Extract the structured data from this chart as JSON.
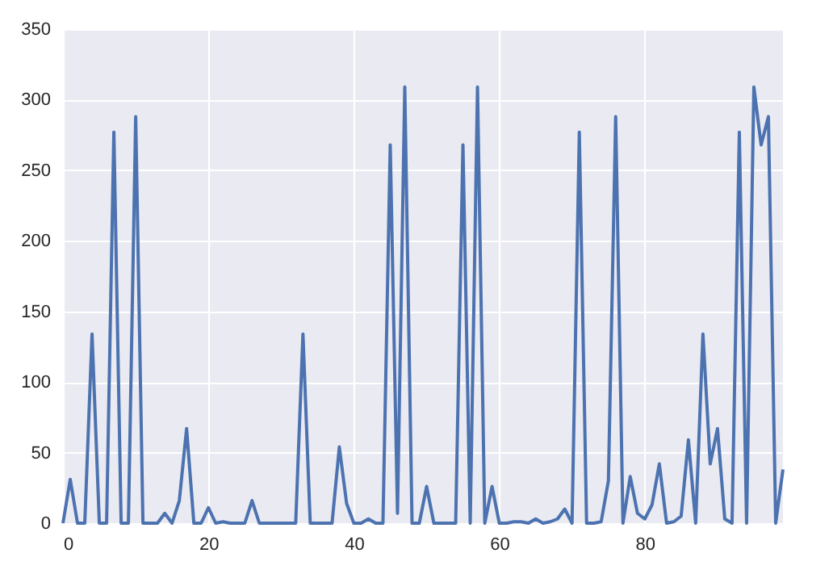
{
  "chart_data": {
    "type": "line",
    "x": [
      0,
      1,
      2,
      3,
      4,
      5,
      6,
      7,
      8,
      9,
      10,
      11,
      12,
      13,
      14,
      15,
      16,
      17,
      18,
      19,
      20,
      21,
      22,
      23,
      24,
      25,
      26,
      27,
      28,
      29,
      30,
      31,
      32,
      33,
      34,
      35,
      36,
      37,
      38,
      39,
      40,
      41,
      42,
      43,
      44,
      45,
      46,
      47,
      48,
      49,
      50,
      51,
      52,
      53,
      54,
      55,
      56,
      57,
      58,
      59,
      60,
      61,
      62,
      63,
      64,
      65,
      66,
      67,
      68,
      69,
      70,
      71,
      72,
      73,
      74,
      75,
      76,
      77,
      78,
      79,
      80,
      81,
      82,
      83,
      84,
      85,
      86,
      87,
      88,
      89,
      90,
      91,
      92,
      93,
      94,
      95,
      96,
      97,
      98,
      99
    ],
    "series": [
      {
        "color": "#4c72b0",
        "values": [
          0,
          31,
          0,
          0,
          134,
          0,
          0,
          277,
          0,
          0,
          288,
          0,
          0,
          0,
          7,
          0,
          16,
          67,
          0,
          0,
          11,
          0,
          1,
          0,
          0,
          0,
          16,
          0,
          0,
          0,
          0,
          0,
          0,
          134,
          0,
          0,
          0,
          0,
          54,
          14,
          0,
          0,
          3,
          0,
          0,
          268,
          7,
          309,
          0,
          0,
          26,
          0,
          0,
          0,
          0,
          268,
          0,
          309,
          0,
          26,
          0,
          0,
          1,
          1,
          0,
          3,
          0,
          1,
          3,
          10,
          0,
          277,
          0,
          0,
          1,
          30,
          288,
          0,
          33,
          7,
          3,
          13,
          42,
          0,
          1,
          5,
          59,
          0,
          134,
          42,
          67,
          3,
          0,
          277,
          0,
          309,
          268,
          288,
          0,
          38
        ]
      }
    ],
    "xlim": [
      0,
      99
    ],
    "ylim": [
      0,
      350
    ],
    "xticks": [
      0,
      20,
      40,
      60,
      80
    ],
    "yticks": [
      0,
      50,
      100,
      150,
      200,
      250,
      300,
      350
    ],
    "grid": true
  }
}
